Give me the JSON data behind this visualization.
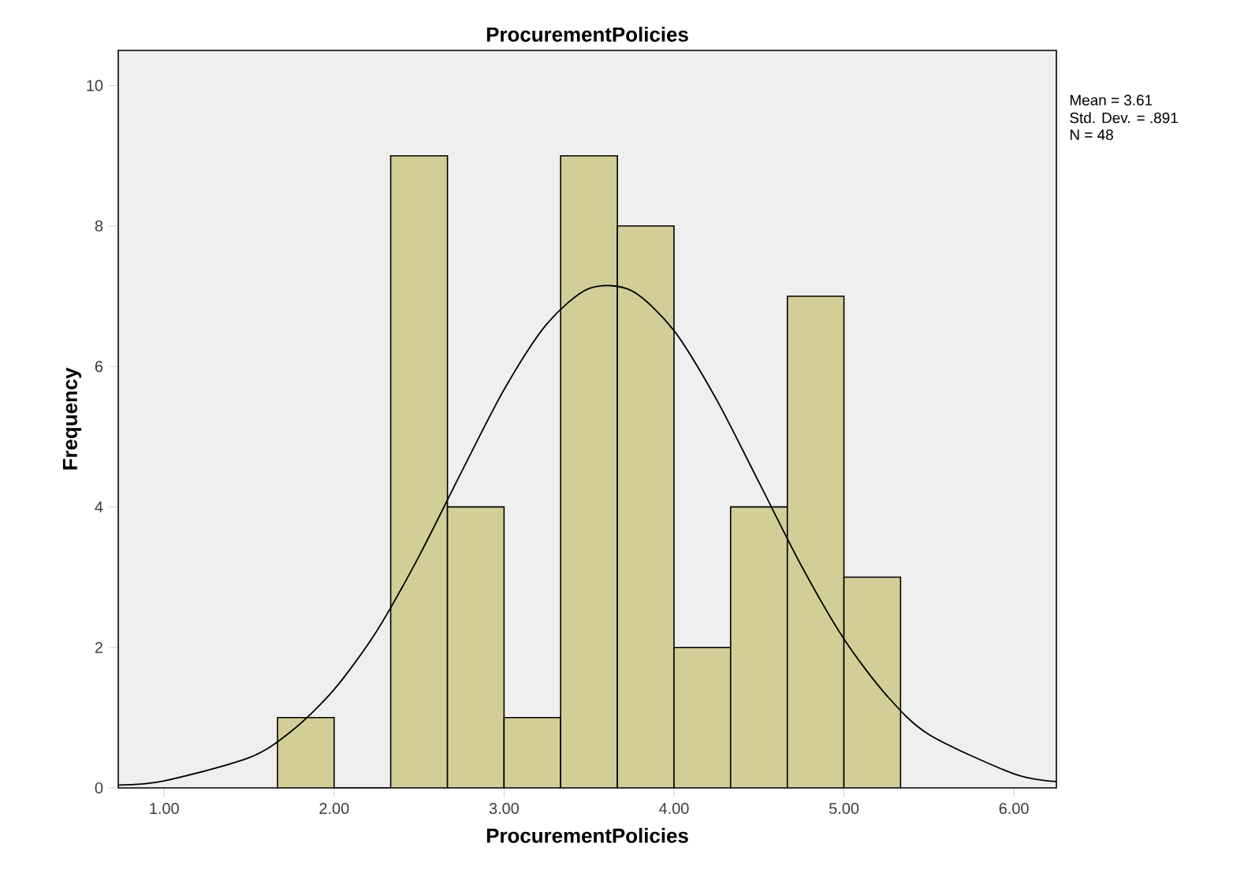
{
  "chart_data": {
    "type": "histogram",
    "title": "ProcurementPolicies",
    "xlabel": "ProcurementPolicies",
    "ylabel": "Frequency",
    "series": [
      {
        "color": "#d3ce97",
        "bins": [
          1.667,
          2.0,
          2.333,
          2.667,
          3.0,
          3.333,
          3.667,
          4.0,
          4.333,
          4.667,
          5.0,
          5.333
        ],
        "values": [
          1,
          0,
          9,
          4,
          1,
          9,
          8,
          2,
          4,
          7,
          3
        ]
      },
      {
        "type": "line",
        "color": "#000000",
        "x": [
          0.73,
          1.0,
          1.5,
          1.75,
          2.0,
          2.25,
          2.5,
          2.75,
          3.0,
          3.25,
          3.5,
          3.75,
          4.0,
          4.25,
          4.5,
          4.75,
          5.0,
          5.25,
          5.5,
          6.0,
          6.25
        ],
        "values": [
          0.04,
          0.1,
          0.43,
          0.81,
          1.4,
          2.23,
          3.3,
          4.5,
          5.67,
          6.6,
          7.11,
          7.08,
          6.51,
          5.53,
          4.35,
          3.16,
          2.12,
          1.32,
          0.76,
          0.2,
          0.09
        ]
      }
    ],
    "xlim": [
      0.73,
      6.25
    ],
    "ylim": [
      0,
      10.5
    ],
    "xticks": [
      {
        "value": 1,
        "label": "1.00"
      },
      {
        "value": 2,
        "label": "2.00"
      },
      {
        "value": 3,
        "label": "3.00"
      },
      {
        "value": 4,
        "label": "4.00"
      },
      {
        "value": 5,
        "label": "5.00"
      },
      {
        "value": 6,
        "label": "6.00"
      }
    ],
    "yticks": [
      0,
      2,
      4,
      6,
      8,
      10
    ],
    "annotations": [
      "Mean = 3.61",
      "Std. Dev. = .891",
      "N = 48"
    ]
  }
}
